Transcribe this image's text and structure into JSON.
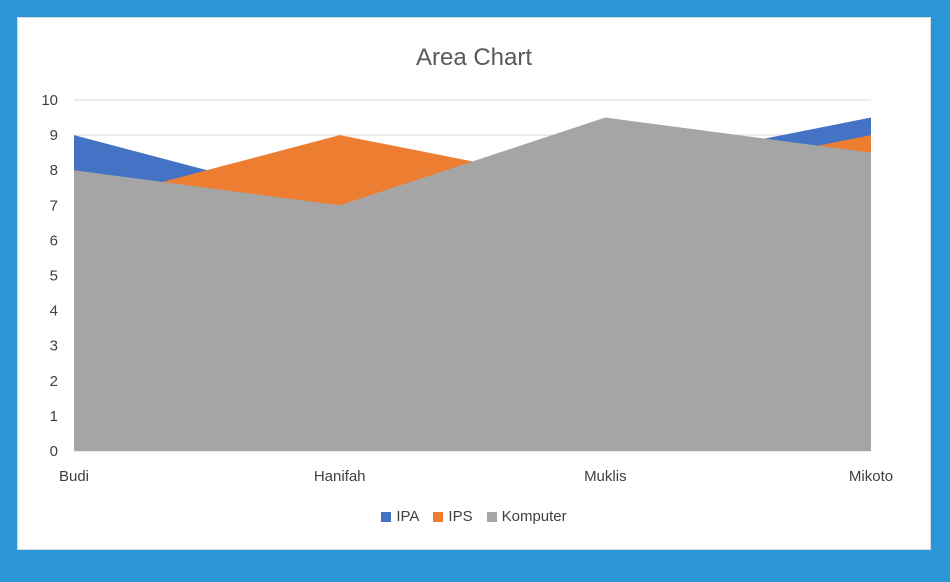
{
  "chart_data": {
    "type": "area",
    "title": "Area Chart",
    "xlabel": "",
    "ylabel": "",
    "categories": [
      "Budi",
      "Hanifah",
      "Muklis",
      "Mikoto"
    ],
    "ylim": [
      0,
      10
    ],
    "yticks": [
      "0",
      "1",
      "2",
      "3",
      "4",
      "5",
      "6",
      "7",
      "8",
      "9",
      "10"
    ],
    "grid": true,
    "legend": "bottom",
    "series": [
      {
        "name": "IPA",
        "values": [
          9,
          7,
          8,
          9.5
        ],
        "color": "#4472c4"
      },
      {
        "name": "IPS",
        "values": [
          7,
          9,
          7.5,
          9
        ],
        "color": "#ed7d31"
      },
      {
        "name": "Komputer",
        "values": [
          8,
          7,
          9.5,
          8.5
        ],
        "color": "#a5a5a5"
      }
    ]
  }
}
